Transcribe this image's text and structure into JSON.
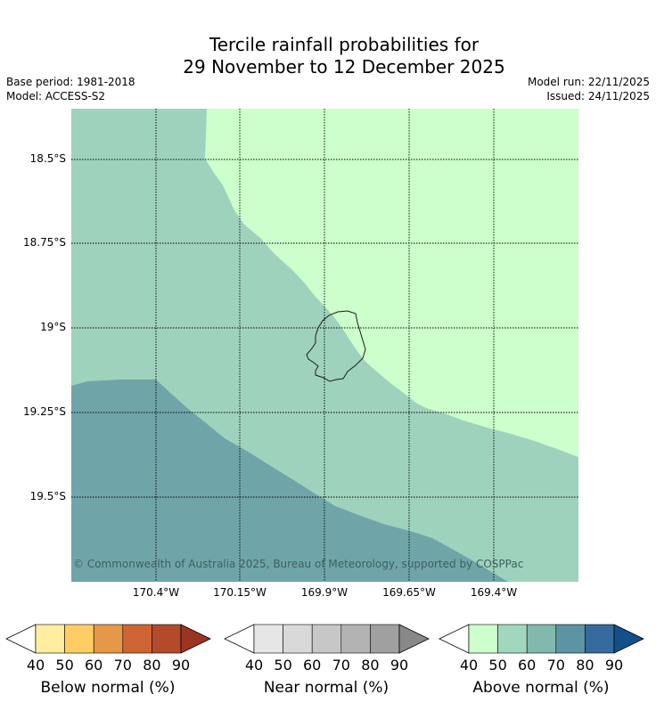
{
  "title_line1": "Tercile rainfall probabilities for",
  "title_line2": "29 November to 12 December 2025",
  "base_period": "Base period: 1981-2018",
  "model": "Model: ACCESS-S2",
  "model_run": "Model run: 22/11/2025",
  "issued": "Issued: 24/11/2025",
  "copyright": "© Commonwealth of Australia 2025, Bureau of Meteorology, supported by COSPPac",
  "lat_labels": [
    "18.5°S",
    "18.75°S",
    "19°S",
    "19.25°S",
    "19.5°S"
  ],
  "lon_labels": [
    "170.4°W",
    "170.15°W",
    "169.9°W",
    "169.65°W",
    "169.4°W"
  ],
  "colorbars": {
    "below": {
      "title": "Below normal (%)",
      "ticks": [
        "40",
        "50",
        "60",
        "70",
        "80",
        "90"
      ],
      "colors": [
        "#ffeea0",
        "#ffcd63",
        "#e59848",
        "#d06434",
        "#b44a2b",
        "#9b3420"
      ]
    },
    "near": {
      "title": "Near normal (%)",
      "ticks": [
        "40",
        "50",
        "60",
        "70",
        "80",
        "90"
      ],
      "colors": [
        "#e6e6e6",
        "#d9d9d9",
        "#c7c7c7",
        "#b3b3b3",
        "#a0a0a0",
        "#888888"
      ]
    },
    "above": {
      "title": "Above normal (%)",
      "ticks": [
        "40",
        "50",
        "60",
        "70",
        "80",
        "90"
      ],
      "colors": [
        "#ccffcc",
        "#a1d8bd",
        "#82b8ad",
        "#5b94a2",
        "#356a9c",
        "#144f8c"
      ]
    }
  },
  "map_colors": {
    "above_40_50": "#ccffcc",
    "above_50_60": "#9fd2bd",
    "above_60_70": "#6fa5a8"
  }
}
